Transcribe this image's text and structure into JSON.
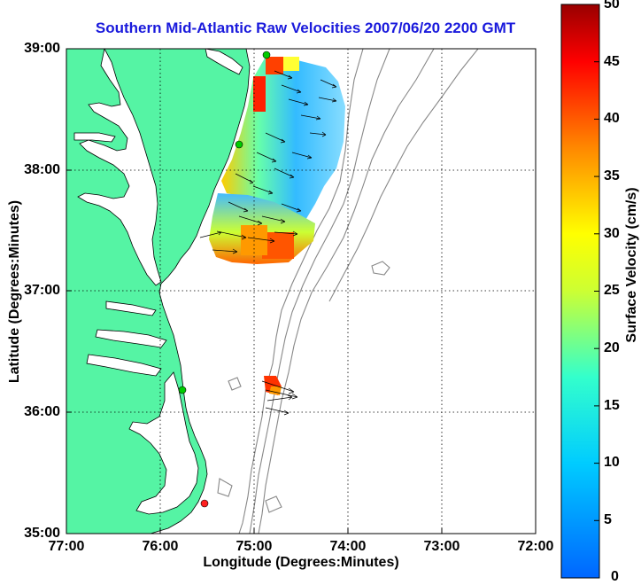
{
  "title": "Southern Mid-Atlantic Raw Velocities 2007/06/20 2200 GMT",
  "map": {
    "xlabel": "Longitude (Degrees:Minutes)",
    "ylabel": "Latitude (Degrees:Minutes)",
    "x_ticks": [
      "77:00",
      "76:00",
      "75:00",
      "74:00",
      "73:00",
      "72:00"
    ],
    "y_ticks": [
      "39:00",
      "38:00",
      "37:00",
      "36:00",
      "35:00"
    ],
    "land_color": "#55f4a4",
    "grid": "dotted"
  },
  "colorbar": {
    "label": "Surface Velocity (cm/s)",
    "ticks": [
      "50",
      "45",
      "40",
      "35",
      "30",
      "25",
      "20",
      "15",
      "10",
      "5",
      "0"
    ],
    "colormap": "jet"
  },
  "stations": {
    "green": "#00cc00",
    "red": "#ff2020"
  }
}
